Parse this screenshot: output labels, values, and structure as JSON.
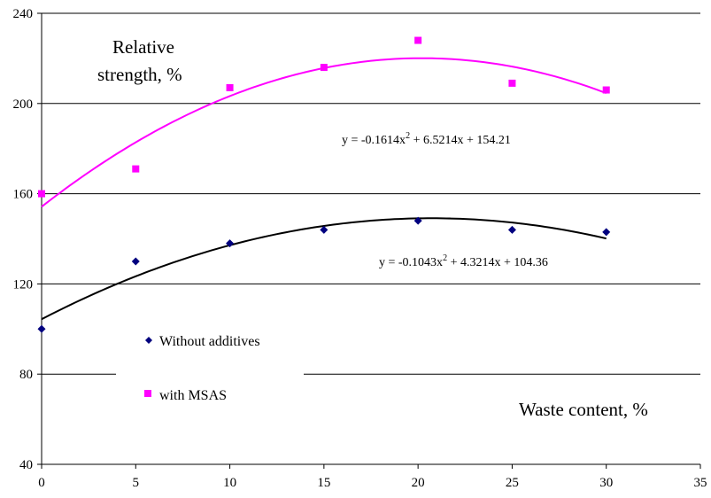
{
  "chart_data": {
    "type": "scatter",
    "title": "",
    "ylabel_lines": [
      "Relative",
      "strength, %"
    ],
    "xlabel": "Waste content, %",
    "xlim": [
      0,
      35
    ],
    "ylim": [
      40,
      240
    ],
    "x_ticks": [
      0,
      5,
      10,
      15,
      20,
      25,
      30,
      35
    ],
    "y_ticks": [
      40,
      80,
      120,
      160,
      200,
      240
    ],
    "grid": "horizontal",
    "legend_position": "bottom-left",
    "series": [
      {
        "name": "Without additives",
        "marker": "diamond",
        "color": "#00007f",
        "trend_color": "#000000",
        "x": [
          0,
          5,
          10,
          15,
          20,
          25,
          30
        ],
        "y": [
          100,
          130,
          138,
          144,
          148,
          144,
          143
        ],
        "trendline": {
          "a": -0.1043,
          "b": 4.3214,
          "c": 104.36
        },
        "equation": "y = -0.1043x² + 4.3214x + 104.36"
      },
      {
        "name": "with MSAS",
        "marker": "square",
        "color": "#ff00ff",
        "trend_color": "#ff00ff",
        "x": [
          0,
          5,
          10,
          15,
          20,
          25,
          30
        ],
        "y": [
          160,
          171,
          207,
          216,
          228,
          209,
          206
        ],
        "trendline": {
          "a": -0.1614,
          "b": 6.5214,
          "c": 154.21
        },
        "equation": "y = -0.1614x² + 6.5214x + 154.21"
      }
    ]
  }
}
